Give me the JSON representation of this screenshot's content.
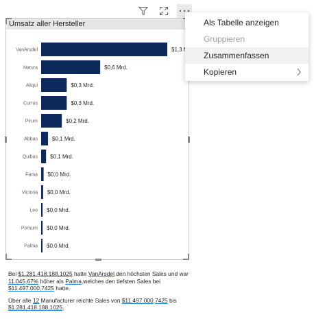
{
  "header_icons": {
    "filter": "filter-icon",
    "focus": "focus-mode-icon",
    "more": "more-options-icon"
  },
  "visual": {
    "title": "Umsatz aller Hersteller"
  },
  "menu": {
    "items": [
      {
        "label": "Als Tabelle anzeigen",
        "disabled": false
      },
      {
        "label": "Gruppieren",
        "disabled": true
      },
      {
        "label": "Zusammenfassen",
        "disabled": false,
        "hovered": true
      },
      {
        "label": "Kopieren",
        "disabled": false,
        "submenu": true
      }
    ]
  },
  "chart_data": {
    "type": "bar",
    "orientation": "horizontal",
    "title": "Umsatz aller Hersteller",
    "categories": [
      "VanArsdel",
      "Natura",
      "Aliqui",
      "Currus",
      "Pirum",
      "Abbas",
      "Quibus",
      "Fama",
      "Victoria",
      "Leo",
      "Pomum",
      "Palma"
    ],
    "values": [
      1.3,
      0.6,
      0.3,
      0.3,
      0.2,
      0.1,
      0.1,
      0.0,
      0.0,
      0.0,
      0.0,
      0.0
    ],
    "raw_values": [
      1.281418,
      0.6,
      0.26,
      0.26,
      0.21,
      0.07,
      0.05,
      0.025,
      0.02,
      0.015,
      0.015,
      0.011
    ],
    "data_labels": [
      "$1,3 Mrd.",
      "$0,6 Mrd.",
      "$0,3 Mrd.",
      "$0,3 Mrd.",
      "$0,2 Mrd.",
      "$0,1 Mrd.",
      "$0,1 Mrd.",
      "$0,0 Mrd.",
      "$0,0 Mrd.",
      "$0,0 Mrd.",
      "$0,0 Mrd.",
      "$0,0 Mrd."
    ],
    "bar_color": "#0d2a5c",
    "xlim": [
      0,
      1.3
    ]
  },
  "narrative": {
    "p1": {
      "t1": "Bei ",
      "v1": "$1.281.418.188,1025",
      "t2": " hatte ",
      "v2": "VanArsdel",
      "t3": " den höchsten Sales und war ",
      "v3": "11.045,67%",
      "t4": " höher als ",
      "v4": "Palma",
      "t5": ",welches den tiefsten Sales bei ",
      "v5": "$11.497.000,7425",
      "t6": " hatte."
    },
    "p2": {
      "t1": "Über alle ",
      "v1": "12",
      "t2": " Manufacturer reichte Sales von ",
      "v2": "$11.497.000,7425",
      "t3": " bis ",
      "v3": "$1.281.418.188,1025",
      "t4": "."
    }
  }
}
